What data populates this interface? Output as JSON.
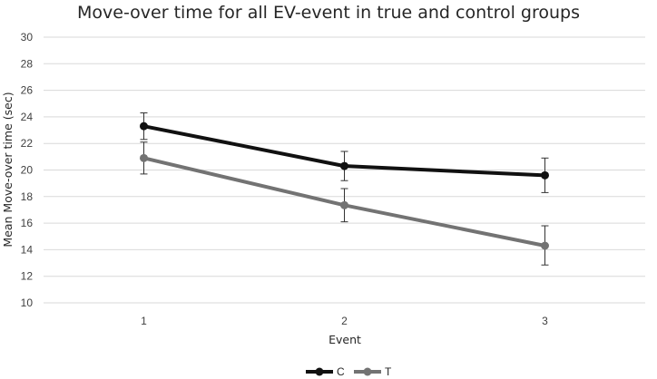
{
  "chart_data": {
    "type": "line",
    "title": "Move-over time for all EV-event in true and control groups",
    "xlabel": "Event",
    "ylabel": "Mean Move-over time (sec)",
    "categories": [
      "1",
      "2",
      "3"
    ],
    "ylim": [
      10,
      30
    ],
    "yticks": [
      10,
      12,
      14,
      16,
      18,
      20,
      22,
      24,
      26,
      28,
      30
    ],
    "grid": true,
    "legend_position": "bottom",
    "series": [
      {
        "name": "C",
        "color": "#111111",
        "values": [
          23.3,
          20.3,
          19.6
        ],
        "error_low": [
          22.3,
          19.2,
          18.3
        ],
        "error_high": [
          24.3,
          21.4,
          20.9
        ]
      },
      {
        "name": "T",
        "color": "#737373",
        "values": [
          20.9,
          17.35,
          14.3
        ],
        "error_low": [
          19.7,
          16.1,
          12.85
        ],
        "error_high": [
          22.1,
          18.6,
          15.8
        ]
      }
    ]
  }
}
